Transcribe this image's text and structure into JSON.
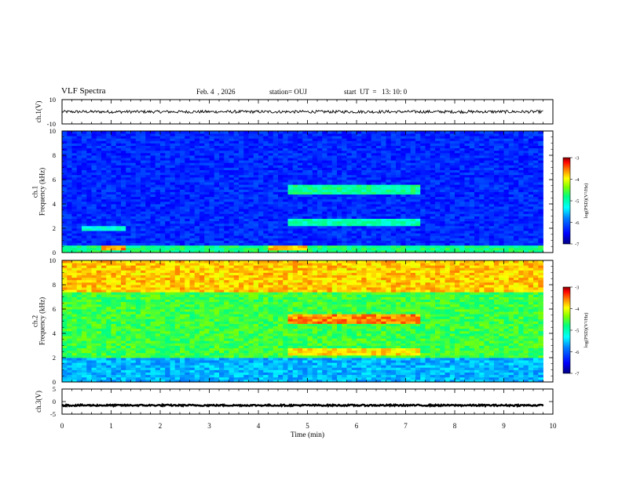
{
  "header": {
    "title": "VLF Spectra",
    "date": "Feb. 4  , 2026",
    "station": "station= OUJ",
    "start": "start  UT  =   13: 10: 0"
  },
  "colors": {
    "background": "#ffffff",
    "axes": "#000000",
    "colormap": [
      "#000080",
      "#0000ff",
      "#0080ff",
      "#00ffff",
      "#00ff80",
      "#80ff00",
      "#ffff00",
      "#ff8000",
      "#ff0000",
      "#800000"
    ]
  },
  "chart_data": [
    {
      "type": "line",
      "name": "ch1-waveform",
      "ylabel": "ch.1(V)",
      "ylim": [
        -10,
        10
      ],
      "yticks": [
        "10",
        "-10"
      ],
      "x": [
        0,
        9.8
      ],
      "approx_value": 0,
      "noise_amplitude": 1.2
    },
    {
      "type": "heatmap",
      "name": "ch1-spectrogram",
      "ylabel": "ch.1\nFrequency  (kHz)",
      "ylim": [
        0,
        10
      ],
      "yticks": [
        "0",
        "2",
        "4",
        "6",
        "8",
        "10"
      ],
      "xlim": [
        0,
        10
      ],
      "data_end_min": 9.8,
      "colorbar": {
        "label": "log(PSD)(V²/Hz)",
        "range": [
          -7,
          -3
        ],
        "ticks": [
          "-3",
          "-4",
          "-5",
          "-6",
          "-7"
        ]
      },
      "base_level": -6.3,
      "features": [
        {
          "desc": "low-frequency band",
          "t": [
            0,
            9.8
          ],
          "f": [
            0,
            0.6
          ],
          "level": -4.8
        },
        {
          "desc": "band",
          "t": [
            4.6,
            7.35
          ],
          "f": [
            4.8,
            5.6
          ],
          "level": -4.9
        },
        {
          "desc": "band",
          "t": [
            4.6,
            7.35
          ],
          "f": [
            2.3,
            2.8
          ],
          "level": -5.0
        },
        {
          "desc": "band",
          "t": [
            0.4,
            1.3
          ],
          "f": [
            1.8,
            2.1
          ],
          "level": -5.2
        },
        {
          "desc": "burst",
          "t": [
            0.85,
            1.3
          ],
          "f": [
            0.3,
            0.6
          ],
          "level": -3.6
        },
        {
          "desc": "burst",
          "t": [
            4.2,
            5.0
          ],
          "f": [
            0.3,
            0.6
          ],
          "level": -3.8
        }
      ]
    },
    {
      "type": "heatmap",
      "name": "ch2-spectrogram",
      "ylabel": "ch.2\nFrequency  (kHz)",
      "ylim": [
        0,
        10
      ],
      "yticks": [
        "0",
        "2",
        "4",
        "6",
        "8",
        "10"
      ],
      "xlim": [
        0,
        10
      ],
      "data_end_min": 9.8,
      "colorbar": {
        "label": "log(PSD)(V²/Hz)",
        "range": [
          -7,
          -3
        ],
        "ticks": [
          "-3",
          "-4",
          "-5",
          "-6",
          "-7"
        ]
      },
      "base_level": -4.6,
      "features": [
        {
          "desc": "high-frequency band",
          "t": [
            0,
            9.8
          ],
          "f": [
            7.5,
            10
          ],
          "level": -3.8
        },
        {
          "desc": "band",
          "t": [
            4.6,
            7.35
          ],
          "f": [
            4.9,
            5.6
          ],
          "level": -3.6
        },
        {
          "desc": "band",
          "t": [
            4.6,
            7.35
          ],
          "f": [
            2.3,
            2.8
          ],
          "level": -3.9
        },
        {
          "desc": "low-frequency band",
          "t": [
            0,
            9.8
          ],
          "f": [
            0,
            2.0
          ],
          "level": -5.6
        }
      ]
    },
    {
      "type": "line",
      "name": "ch3-waveform",
      "ylabel": "ch.3(V)",
      "ylim": [
        -5,
        5
      ],
      "yticks": [
        "5",
        "0",
        "-5"
      ],
      "x": [
        0,
        9.8
      ],
      "approx_value": -1.5,
      "noise_amplitude": 0.3
    }
  ],
  "xaxis": {
    "label": "Time  (min)",
    "ticks": [
      "0",
      "1",
      "2",
      "3",
      "4",
      "5",
      "6",
      "7",
      "8",
      "9",
      "10"
    ],
    "xlim": [
      0,
      10
    ]
  }
}
